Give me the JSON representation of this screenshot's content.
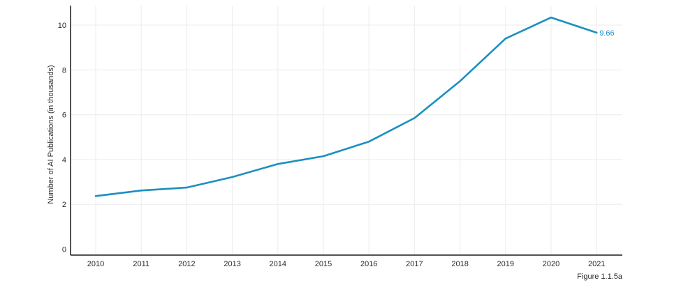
{
  "chart_data": {
    "type": "line",
    "ylabel": "Number of AI Publications (in thousands)",
    "caption": "Figure 1.1.5a",
    "x": [
      "2010",
      "2011",
      "2012",
      "2013",
      "2014",
      "2015",
      "2016",
      "2017",
      "2018",
      "2019",
      "2020",
      "2021"
    ],
    "yticks": [
      "0",
      "2",
      "4",
      "6",
      "8",
      "10"
    ],
    "ylim": [
      0,
      10.6
    ],
    "grid": true,
    "series": [
      {
        "values": [
          2.37,
          2.62,
          2.75,
          3.22,
          3.8,
          4.15,
          4.8,
          5.85,
          7.5,
          9.4,
          10.34,
          9.66
        ],
        "color": "#1b8fc0",
        "end_label": "9.66"
      }
    ]
  }
}
